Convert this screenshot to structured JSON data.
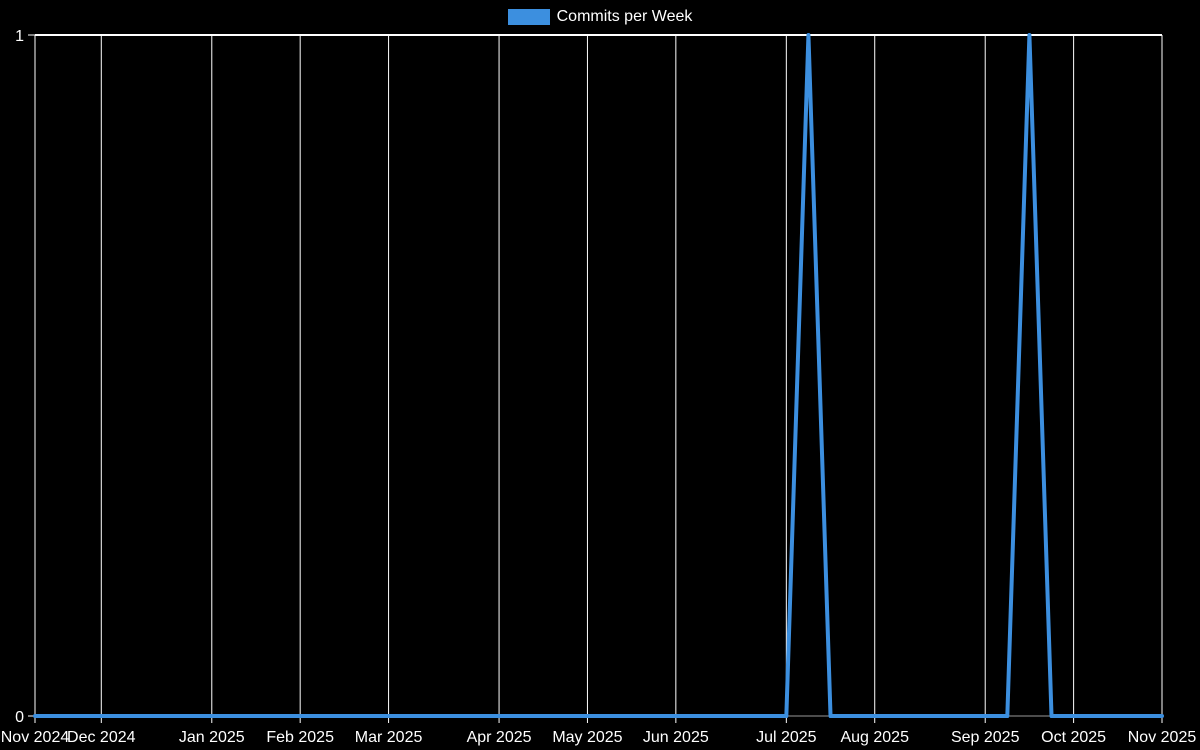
{
  "page": {
    "background_color": "#000000",
    "text_color": "#ffffff"
  },
  "legend": {
    "label": "Commits per Week",
    "swatch_color": "#3c8fdf"
  },
  "chart_data": {
    "type": "line",
    "title": "Commits per Week",
    "legend_position": "top-center",
    "grid": true,
    "background_color": "#000000",
    "text_color": "#ffffff",
    "gridline_color": "#ffffff",
    "axis_line_color": "#999999",
    "xlabel": "",
    "ylabel": "",
    "ylim": [
      0,
      1
    ],
    "y_ticks": [
      {
        "label": "1",
        "value": 1
      },
      {
        "label": "0",
        "value": 0
      }
    ],
    "x_ticks": [
      {
        "label": "Nov 2024",
        "week_index": 0
      },
      {
        "label": "Dec 2024",
        "week_index": 3
      },
      {
        "label": "Jan 2025",
        "week_index": 8
      },
      {
        "label": "Feb 2025",
        "week_index": 12
      },
      {
        "label": "Mar 2025",
        "week_index": 16
      },
      {
        "label": "Apr 2025",
        "week_index": 21
      },
      {
        "label": "May 2025",
        "week_index": 25
      },
      {
        "label": "Jun 2025",
        "week_index": 29
      },
      {
        "label": "Jul 2025",
        "week_index": 34
      },
      {
        "label": "Aug 2025",
        "week_index": 38
      },
      {
        "label": "Sep 2025",
        "week_index": 43
      },
      {
        "label": "Oct 2025",
        "week_index": 47
      },
      {
        "label": "Nov 2025",
        "week_index": 51
      }
    ],
    "series": [
      {
        "name": "Commits per Week",
        "color": "#3c8fdf",
        "x_weeks": [
          "2024-11-10",
          "2024-11-17",
          "2024-11-24",
          "2024-12-01",
          "2024-12-08",
          "2024-12-15",
          "2024-12-22",
          "2024-12-29",
          "2025-01-05",
          "2025-01-12",
          "2025-01-19",
          "2025-01-26",
          "2025-02-02",
          "2025-02-09",
          "2025-02-16",
          "2025-02-23",
          "2025-03-02",
          "2025-03-09",
          "2025-03-16",
          "2025-03-23",
          "2025-03-30",
          "2025-04-06",
          "2025-04-13",
          "2025-04-20",
          "2025-04-27",
          "2025-05-04",
          "2025-05-11",
          "2025-05-18",
          "2025-05-25",
          "2025-06-01",
          "2025-06-08",
          "2025-06-15",
          "2025-06-22",
          "2025-06-29",
          "2025-07-06",
          "2025-07-13",
          "2025-07-20",
          "2025-07-27",
          "2025-08-03",
          "2025-08-10",
          "2025-08-17",
          "2025-08-24",
          "2025-08-31",
          "2025-09-07",
          "2025-09-14",
          "2025-09-21",
          "2025-09-28",
          "2025-10-05",
          "2025-10-12",
          "2025-10-19",
          "2025-10-26",
          "2025-11-02"
        ],
        "values": [
          0,
          0,
          0,
          0,
          0,
          0,
          0,
          0,
          0,
          0,
          0,
          0,
          0,
          0,
          0,
          0,
          0,
          0,
          0,
          0,
          0,
          0,
          0,
          0,
          0,
          0,
          0,
          0,
          0,
          0,
          0,
          0,
          0,
          0,
          0,
          1,
          0,
          0,
          0,
          0,
          0,
          0,
          0,
          0,
          0,
          1,
          0,
          0,
          0,
          0,
          0,
          0
        ]
      }
    ]
  }
}
